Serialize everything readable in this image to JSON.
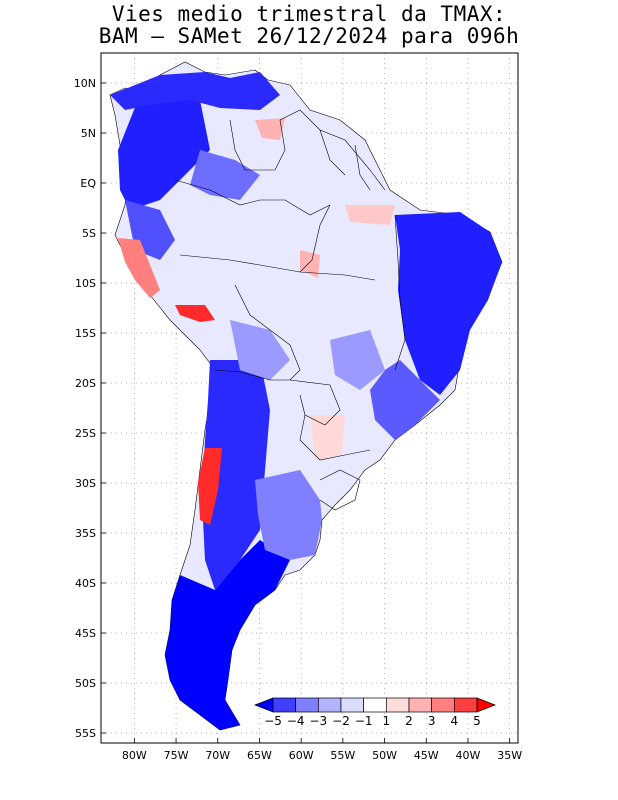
{
  "title": {
    "line1": "Vies medio trimestral da TMAX:",
    "line2": "BAM – SAMet 26/12/2024  para 096h"
  },
  "map": {
    "region": "South America",
    "lon_range": [
      -84,
      -34
    ],
    "lat_range": [
      -56,
      13
    ],
    "lat_labels": [
      "10N",
      "5N",
      "EQ",
      "5S",
      "10S",
      "15S",
      "20S",
      "25S",
      "30S",
      "35S",
      "40S",
      "45S",
      "50S",
      "55S"
    ],
    "lat_values": [
      10,
      5,
      0,
      -5,
      -10,
      -15,
      -20,
      -25,
      -30,
      -35,
      -40,
      -45,
      -50,
      -55
    ],
    "lon_labels": [
      "80W",
      "75W",
      "70W",
      "65W",
      "60W",
      "55W",
      "50W",
      "45W",
      "40W",
      "35W"
    ],
    "lon_values": [
      -80,
      -75,
      -70,
      -65,
      -60,
      -55,
      -50,
      -45,
      -40,
      -35
    ]
  },
  "colorbar": {
    "labels": [
      "−5",
      "−4",
      "−3",
      "−2",
      "−1",
      "1",
      "2",
      "3",
      "4",
      "5"
    ],
    "colors": [
      "#0000ff",
      "#3f3fff",
      "#7f7fff",
      "#b2b2ff",
      "#dcdcff",
      "#ffffff",
      "#ffdcdc",
      "#ffb2b2",
      "#ff7f7f",
      "#ff3f3f",
      "#ff0000"
    ]
  },
  "colors": {
    "strong_negative": "#1a1aff",
    "medium_negative": "#6d6dff",
    "weak_negative": "#c8c8ff",
    "neutral": "#ffffff",
    "weak_positive": "#ffc8c8",
    "strong_positive": "#ff2a2a"
  }
}
